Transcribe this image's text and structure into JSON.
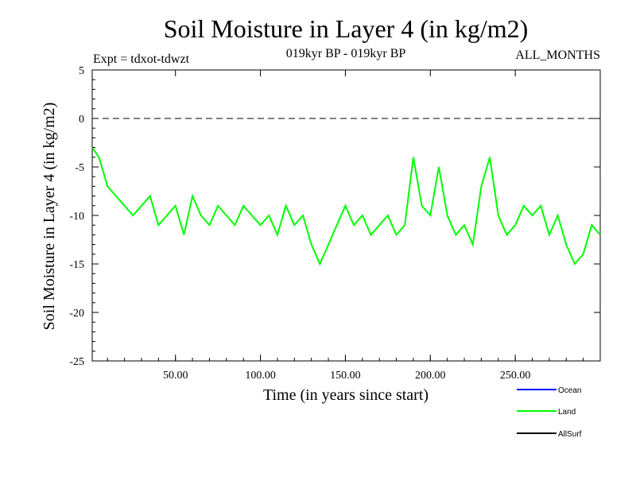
{
  "header": {
    "title": "Soil Moisture in Layer 4 (in kg/m2)",
    "expt": "Expt = tdxot-tdwzt",
    "period": "019kyr BP - 019kyr BP",
    "months": "ALL_MONTHS"
  },
  "legend": {
    "items": [
      {
        "label": "Ocean",
        "color": "#0000ff"
      },
      {
        "label": "Land",
        "color": "#00ff00"
      },
      {
        "label": "AllSurf",
        "color": "#000000"
      }
    ]
  },
  "chart_data": {
    "type": "line",
    "title": "Soil Moisture in Layer 4 (in kg/m2)",
    "xlabel": "Time (in years since start)",
    "ylabel": "Soil Moisture in Layer 4 (in kg/m2)",
    "xlim": [
      1,
      300
    ],
    "ylim": [
      -25,
      5
    ],
    "x_ticks": [
      50,
      100,
      150,
      200,
      250
    ],
    "x_tick_labels": [
      "50.00",
      "100.00",
      "150.00",
      "200.00",
      "250.00"
    ],
    "y_ticks": [
      5,
      0,
      -5,
      -10,
      -15,
      -20,
      -25
    ],
    "y_tick_labels": [
      "5",
      "0",
      "-5",
      "-10",
      "-15",
      "-20",
      "-25"
    ],
    "reference_line": {
      "y": 0,
      "style": "dashed"
    },
    "grid": false,
    "legend_position": "bottom-right",
    "series": [
      {
        "name": "Land",
        "color": "#00ff00",
        "x": [
          1,
          5,
          10,
          15,
          20,
          25,
          30,
          35,
          40,
          45,
          50,
          55,
          60,
          65,
          70,
          75,
          80,
          85,
          90,
          95,
          100,
          105,
          110,
          115,
          120,
          125,
          130,
          135,
          140,
          145,
          150,
          155,
          160,
          165,
          170,
          175,
          180,
          185,
          190,
          195,
          200,
          205,
          210,
          215,
          220,
          225,
          230,
          235,
          240,
          245,
          250,
          255,
          260,
          265,
          270,
          275,
          280,
          285,
          290,
          295,
          300
        ],
        "y": [
          -3,
          -4,
          -7,
          -8,
          -9,
          -10,
          -9,
          -8,
          -11,
          -10,
          -9,
          -12,
          -8,
          -10,
          -11,
          -9,
          -10,
          -11,
          -9,
          -10,
          -11,
          -10,
          -12,
          -9,
          -11,
          -10,
          -13,
          -15,
          -13,
          -11,
          -9,
          -11,
          -10,
          -12,
          -11,
          -10,
          -12,
          -11,
          -4,
          -9,
          -10,
          -5,
          -10,
          -12,
          -11,
          -13,
          -7,
          -4,
          -10,
          -12,
          -11,
          -9,
          -10,
          -9,
          -12,
          -10,
          -13,
          -15,
          -14,
          -11,
          -12
        ]
      }
    ]
  }
}
